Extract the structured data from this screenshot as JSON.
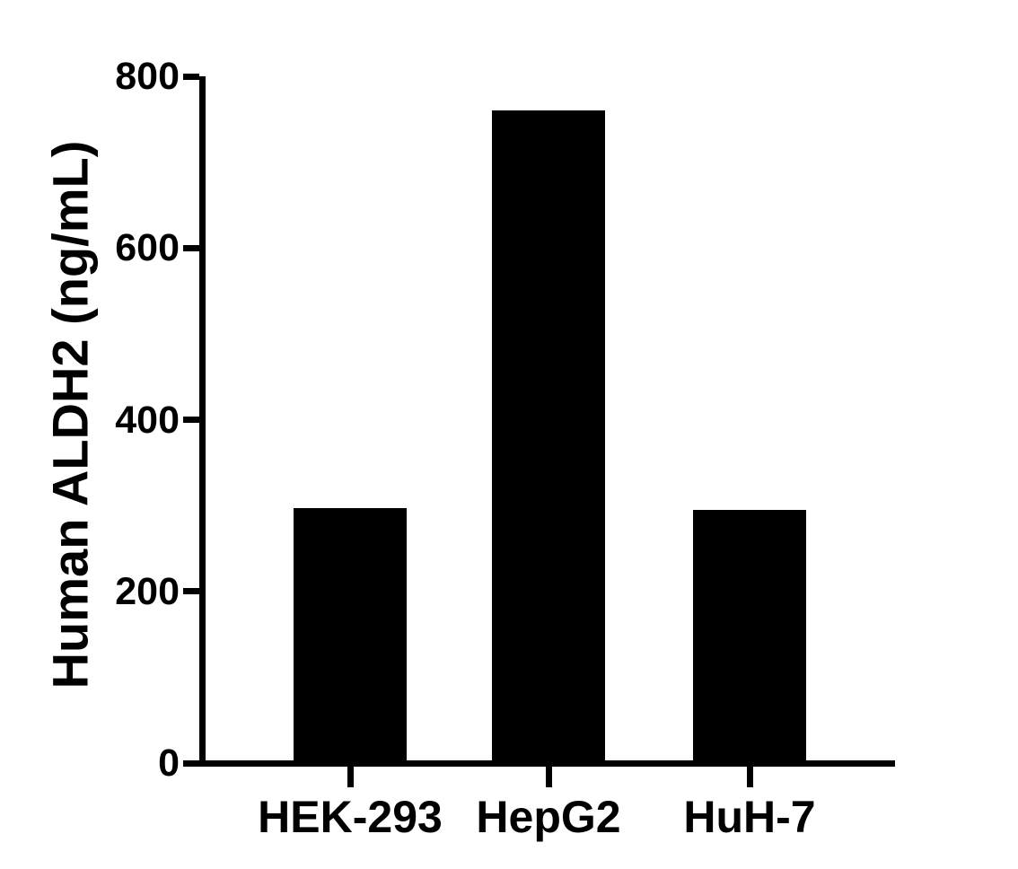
{
  "chart_data": {
    "type": "bar",
    "title": "",
    "categories": [
      "HEK-293",
      "HepG2",
      "HuH-7"
    ],
    "values": [
      297,
      760,
      295
    ],
    "xlabel": "",
    "ylabel": "Human ALDH2 (ng/mL)",
    "ylim": [
      0,
      800
    ],
    "yticks": [
      0,
      200,
      400,
      600,
      800
    ],
    "grid": false,
    "legend": false,
    "bar_color": "#000000",
    "axis_color": "#000000",
    "text_color": "#000000",
    "background_color": "#ffffff"
  }
}
